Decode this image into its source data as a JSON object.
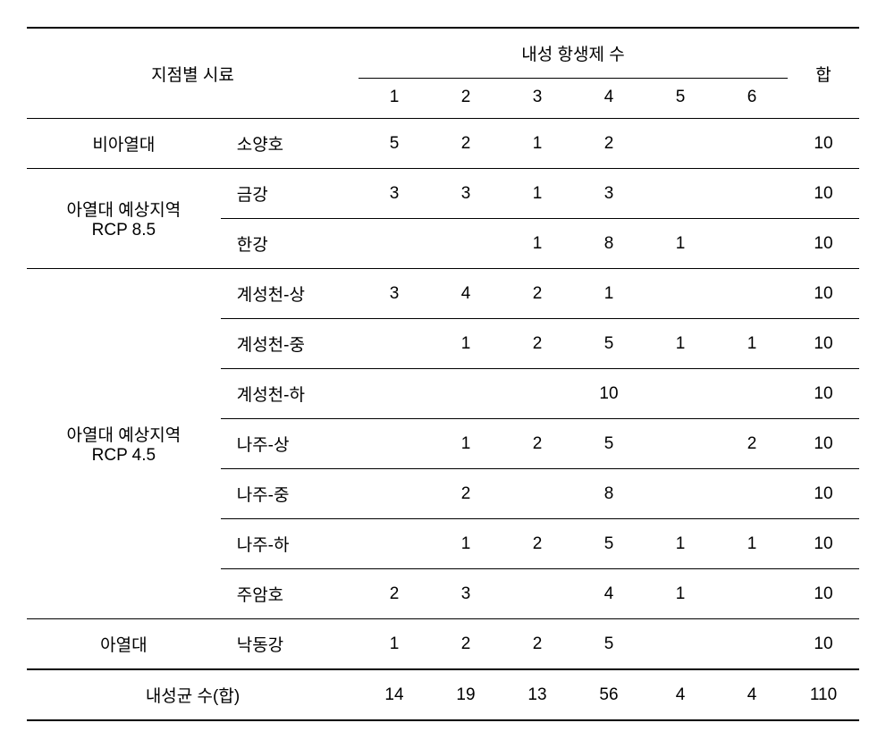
{
  "table": {
    "headers": {
      "region_sample": "지점별 시료",
      "resistance_group": "내성 항생제 수",
      "col1": "1",
      "col2": "2",
      "col3": "3",
      "col4": "4",
      "col5": "5",
      "col6": "6",
      "total": "합"
    },
    "rows": [
      {
        "region": "비아열대",
        "site": "소양호",
        "c1": "5",
        "c2": "2",
        "c3": "1",
        "c4": "2",
        "c5": "",
        "c6": "",
        "total": "10"
      },
      {
        "region": "아열대 예상지역",
        "region_line2": "RCP 8.5",
        "site": "금강",
        "c1": "3",
        "c2": "3",
        "c3": "1",
        "c4": "3",
        "c5": "",
        "c6": "",
        "total": "10"
      },
      {
        "site": "한강",
        "c1": "",
        "c2": "",
        "c3": "1",
        "c4": "8",
        "c5": "1",
        "c6": "",
        "total": "10"
      },
      {
        "region": "아열대 예상지역",
        "region_line2": "RCP 4.5",
        "site": "계성천-상",
        "c1": "3",
        "c2": "4",
        "c3": "2",
        "c4": "1",
        "c5": "",
        "c6": "",
        "total": "10"
      },
      {
        "site": "계성천-중",
        "c1": "",
        "c2": "1",
        "c3": "2",
        "c4": "5",
        "c5": "1",
        "c6": "1",
        "total": "10"
      },
      {
        "site": "계성천-하",
        "c1": "",
        "c2": "",
        "c3": "",
        "c4": "10",
        "c5": "",
        "c6": "",
        "total": "10"
      },
      {
        "site": "나주-상",
        "c1": "",
        "c2": "1",
        "c3": "2",
        "c4": "5",
        "c5": "",
        "c6": "2",
        "total": "10"
      },
      {
        "site": "나주-중",
        "c1": "",
        "c2": "2",
        "c3": "",
        "c4": "8",
        "c5": "",
        "c6": "",
        "total": "10"
      },
      {
        "site": "나주-하",
        "c1": "",
        "c2": "1",
        "c3": "2",
        "c4": "5",
        "c5": "1",
        "c6": "1",
        "total": "10"
      },
      {
        "site": "주암호",
        "c1": "2",
        "c2": "3",
        "c3": "",
        "c4": "4",
        "c5": "1",
        "c6": "",
        "total": "10"
      },
      {
        "region": "아열대",
        "site": "낙동강",
        "c1": "1",
        "c2": "2",
        "c3": "2",
        "c4": "5",
        "c5": "",
        "c6": "",
        "total": "10"
      }
    ],
    "footer": {
      "label": "내성균 수(합)",
      "c1": "14",
      "c2": "19",
      "c3": "13",
      "c4": "56",
      "c5": "4",
      "c6": "4",
      "total": "110"
    },
    "style": {
      "font_size": 19,
      "border_color": "#000000",
      "background_color": "#ffffff",
      "thick_border_width": 2,
      "thin_border_width": 1,
      "cell_padding_v": 14,
      "cell_padding_h": 8
    }
  }
}
